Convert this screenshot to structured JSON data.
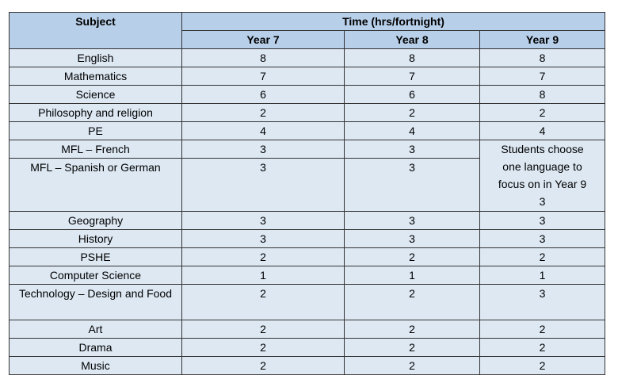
{
  "header": {
    "subject": "Subject",
    "time": "Time (hrs/fortnight)",
    "years": [
      "Year 7",
      "Year 8",
      "Year 9"
    ]
  },
  "rows": [
    {
      "subject": "English",
      "y7": "8",
      "y8": "8",
      "y9": "8"
    },
    {
      "subject": "Mathematics",
      "y7": "7",
      "y8": "7",
      "y9": "7"
    },
    {
      "subject": "Science",
      "y7": "6",
      "y8": "6",
      "y9": "8"
    },
    {
      "subject": "Philosophy and religion",
      "y7": "2",
      "y8": "2",
      "y9": "2"
    },
    {
      "subject": "PE",
      "y7": "4",
      "y8": "4",
      "y9": "4"
    },
    {
      "subject": "MFL – French",
      "y7": "3",
      "y8": "3"
    },
    {
      "subject": "MFL – Spanish or German",
      "y7": "3",
      "y8": "3"
    },
    {
      "subject": "Geography",
      "y7": "3",
      "y8": "3",
      "y9": "3"
    },
    {
      "subject": "History",
      "y7": "3",
      "y8": "3",
      "y9": "3"
    },
    {
      "subject": "PSHE",
      "y7": "2",
      "y8": "2",
      "y9": "2"
    },
    {
      "subject": "Computer Science",
      "y7": "1",
      "y8": "1",
      "y9": "1"
    },
    {
      "subject": "Technology – Design and Food",
      "y7": "2",
      "y8": "2",
      "y9": "3"
    },
    {
      "subject": "Art",
      "y7": "2",
      "y8": "2",
      "y9": "2"
    },
    {
      "subject": "Drama",
      "y7": "2",
      "y8": "2",
      "y9": "2"
    },
    {
      "subject": "Music",
      "y7": "2",
      "y8": "2",
      "y9": "2"
    }
  ],
  "language_note": {
    "lines": [
      "Students choose",
      "one language to",
      "focus on in Year 9"
    ],
    "value": "3"
  },
  "colors": {
    "header_bg": "#b8cfe9",
    "cell_bg": "#dde8f3",
    "border": "#333333"
  }
}
